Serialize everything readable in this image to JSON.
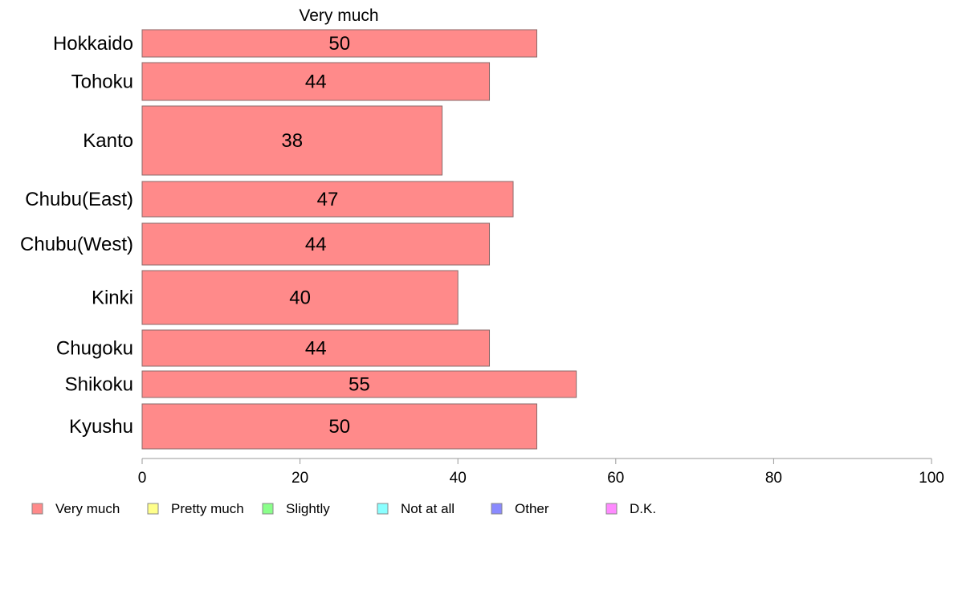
{
  "chart_data": {
    "type": "bar",
    "orientation": "horizontal",
    "title": "Very much",
    "categories": [
      "Hokkaido",
      "Tohoku",
      "Kanto",
      "Chubu(East)",
      "Chubu(West)",
      "Kinki",
      "Chugoku",
      "Shikoku",
      "Kyushu"
    ],
    "values": [
      50,
      44,
      38,
      47,
      44,
      40,
      44,
      55,
      50
    ],
    "data_labels": [
      "50",
      "44",
      "38",
      "47",
      "44",
      "40",
      "44",
      "55",
      "50"
    ],
    "xlim": [
      0,
      100
    ],
    "xticks": [
      0,
      20,
      40,
      60,
      80,
      100
    ],
    "xlabel": "",
    "ylabel": "",
    "grid": false,
    "legend_position": "bottom",
    "legend": [
      {
        "label": "Very much",
        "color": "#ff8a8a"
      },
      {
        "label": "Pretty much",
        "color": "#ffff8a"
      },
      {
        "label": "Slightly",
        "color": "#8aff8a"
      },
      {
        "label": "Not at all",
        "color": "#8affff"
      },
      {
        "label": "Other",
        "color": "#8a8aff"
      },
      {
        "label": "D.K.",
        "color": "#ff8aff"
      }
    ],
    "bar_color": "#ff8a8a"
  }
}
